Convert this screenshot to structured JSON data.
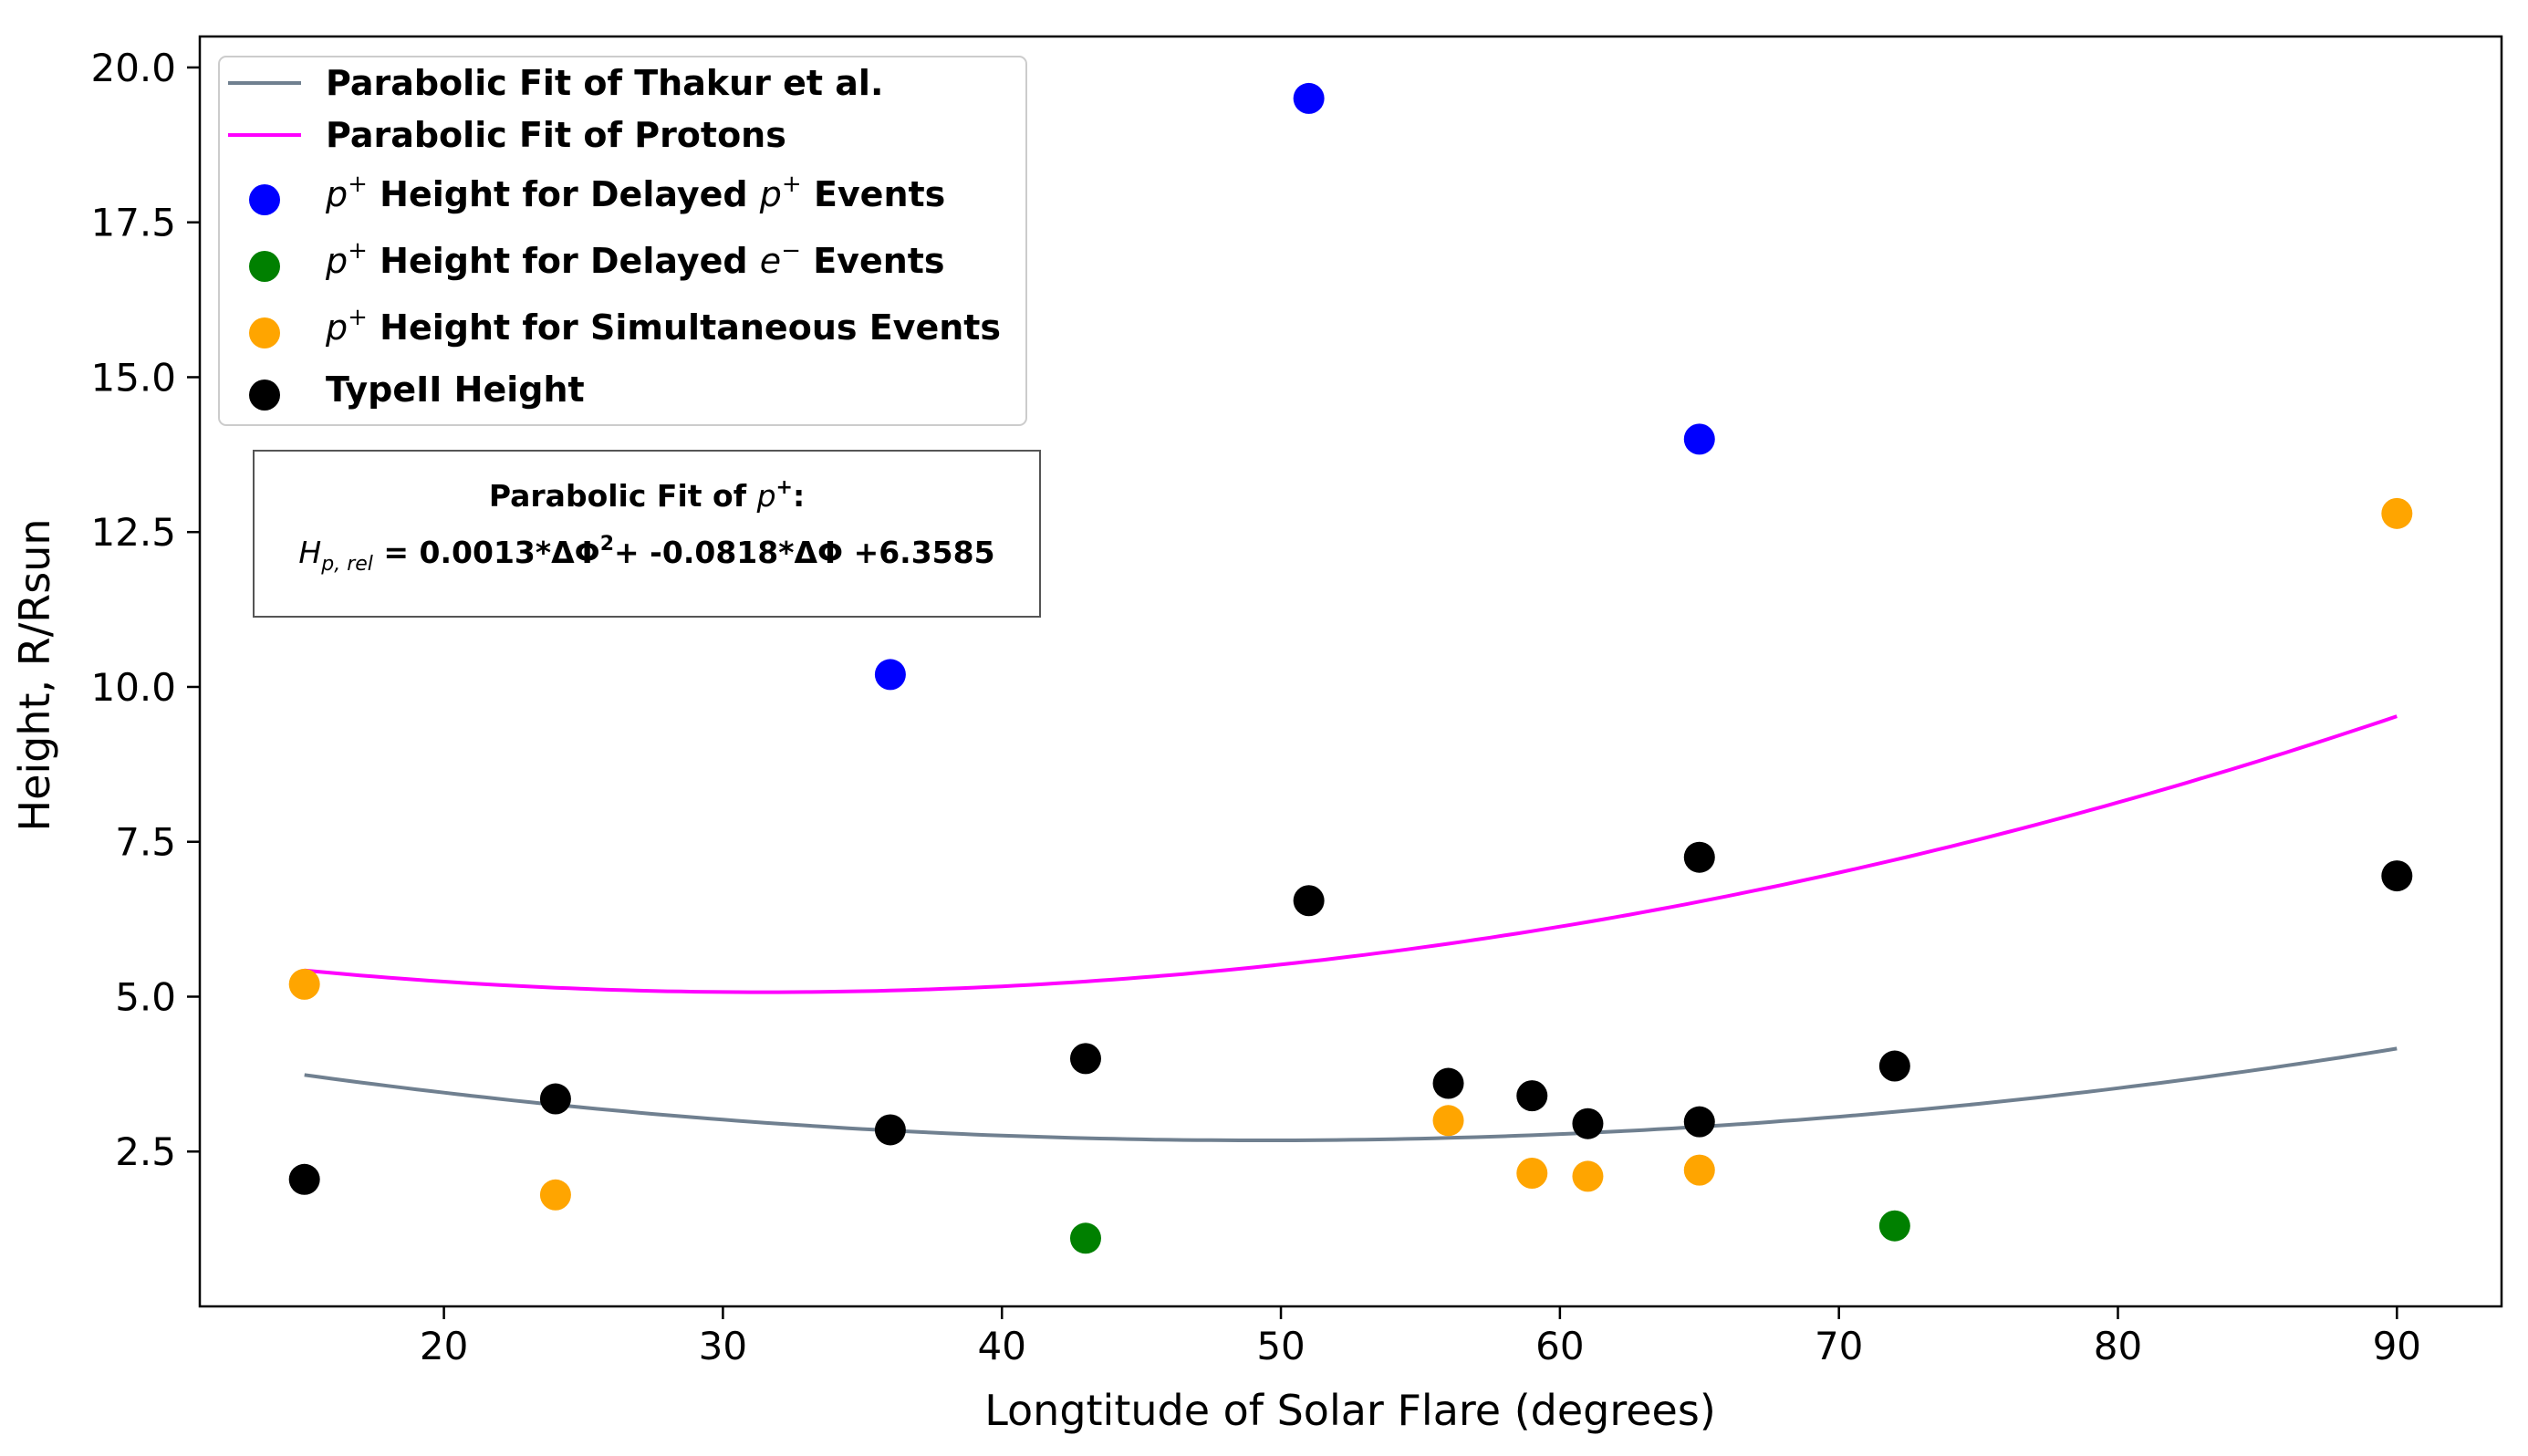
{
  "chart_data": {
    "type": "scatter",
    "xlabel": "Longtitude of Solar Flare (degrees)",
    "ylabel": "Height, R/Rsun",
    "xlim": [
      11.25,
      93.75
    ],
    "ylim": [
      0.0,
      20.5
    ],
    "xticks": [
      20,
      30,
      40,
      50,
      60,
      70,
      80,
      90
    ],
    "yticks": [
      2.5,
      5.0,
      7.5,
      10.0,
      12.5,
      15.0,
      17.5,
      20.0
    ],
    "xtick_labels": [
      "20",
      "30",
      "40",
      "50",
      "60",
      "70",
      "80",
      "90"
    ],
    "ytick_labels": [
      "2.5",
      "5.0",
      "7.5",
      "10.0",
      "12.5",
      "15.0",
      "17.5",
      "20.0"
    ],
    "lines": [
      {
        "name": "Parabolic Fit of Thakur et al.",
        "color": "#708090",
        "x_range": [
          15,
          90
        ],
        "coeffs": [
          0.000896,
          -0.0884,
          4.86
        ]
      },
      {
        "name": "Parabolic Fit of Protons",
        "color": "#ff00ff",
        "x_range": [
          15,
          90
        ],
        "coeffs": [
          0.0013,
          -0.0818,
          6.3585
        ]
      }
    ],
    "series": [
      {
        "name": "p⁺ Height for Delayed p⁺ Events",
        "color": "#0000ff",
        "points": [
          [
            36,
            10.2
          ],
          [
            51,
            19.5
          ],
          [
            65,
            14.0
          ]
        ]
      },
      {
        "name": "p⁺ Height for Delayed e⁻ Events",
        "color": "#008000",
        "points": [
          [
            43,
            1.1
          ],
          [
            72,
            1.3
          ]
        ]
      },
      {
        "name": "p⁺ Height for Simultaneous Events",
        "color": "#ffa500",
        "points": [
          [
            15,
            5.2
          ],
          [
            24,
            1.8
          ],
          [
            56,
            3.0
          ],
          [
            59,
            2.15
          ],
          [
            61,
            2.1
          ],
          [
            65,
            2.2
          ],
          [
            90,
            12.8
          ]
        ]
      },
      {
        "name": "TypeII Height",
        "color": "#000000",
        "points": [
          [
            15,
            2.05
          ],
          [
            24,
            3.35
          ],
          [
            36,
            2.85
          ],
          [
            43,
            4.0
          ],
          [
            51,
            6.55
          ],
          [
            56,
            3.6
          ],
          [
            59,
            3.4
          ],
          [
            61,
            2.95
          ],
          [
            65,
            7.25
          ],
          [
            65,
            2.98
          ],
          [
            72,
            3.88
          ],
          [
            90,
            6.95
          ]
        ]
      }
    ],
    "legend": {
      "position": "upper-left",
      "entries": [
        {
          "kind": "line",
          "color": "#708090",
          "label": "Parabolic Fit of Thakur et al."
        },
        {
          "kind": "line",
          "color": "#ff00ff",
          "label": "Parabolic Fit of Protons"
        },
        {
          "kind": "marker",
          "color": "#0000ff",
          "sup_sym": "p",
          "sup": "+",
          "mid": " Height for Delayed ",
          "sym2": "p",
          "sup2": "+",
          "tail": " Events"
        },
        {
          "kind": "marker",
          "color": "#008000",
          "sup_sym": "p",
          "sup": "+",
          "mid": " Height for Delayed ",
          "sym2": "e",
          "sup2": "−",
          "tail": " Events"
        },
        {
          "kind": "marker",
          "color": "#ffa500",
          "sup_sym": "p",
          "sup": "+",
          "mid": " Height for Simultaneous Events",
          "sym2": "",
          "sup2": "",
          "tail": ""
        },
        {
          "kind": "marker",
          "color": "#000000",
          "sup_sym": "",
          "sup": "",
          "mid": "TypeII Height",
          "sym2": "",
          "sup2": "",
          "tail": ""
        }
      ]
    },
    "annotation": {
      "title_prefix": "Parabolic Fit of ",
      "title_sym": "p",
      "title_sup": "+",
      "title_suffix": ":",
      "eq_var": "H",
      "eq_sub": "p, rel",
      "eq_part1": " = 0.0013*ΔΦ",
      "eq_exp": "2",
      "eq_part2": "+ -0.0818*ΔΦ +6.3585"
    }
  }
}
